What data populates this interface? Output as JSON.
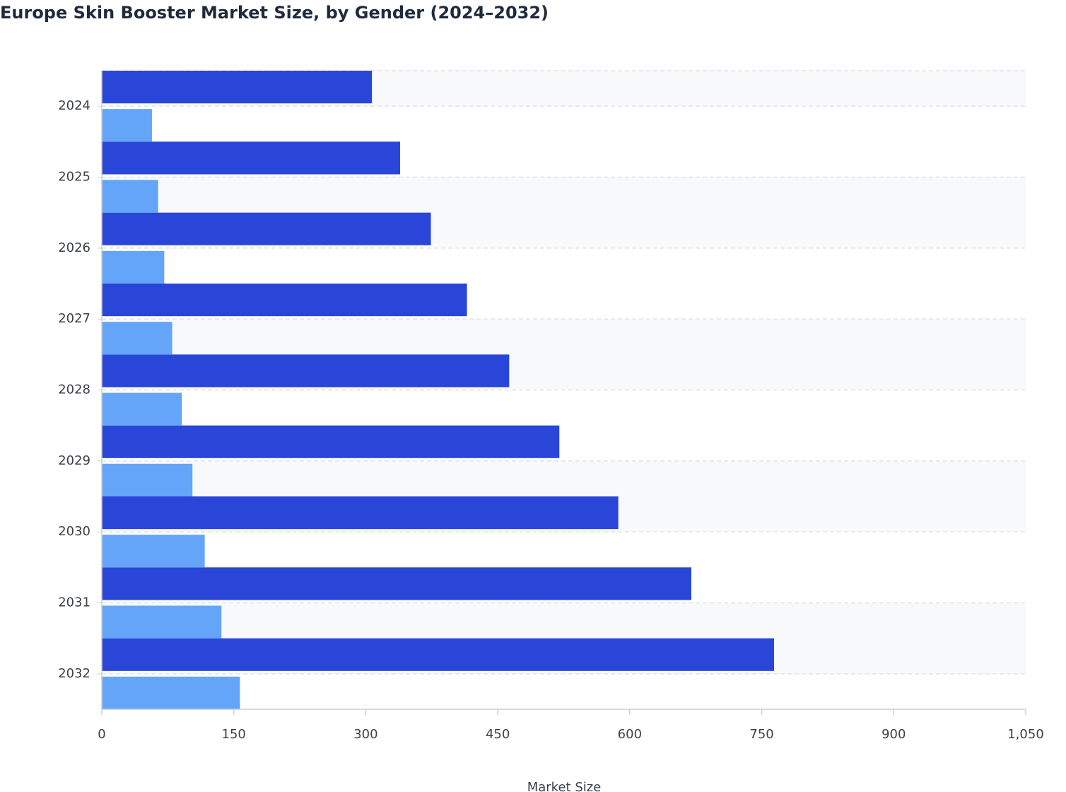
{
  "chart_data": {
    "type": "bar",
    "orientation": "horizontal",
    "title": "Europe Skin Booster Market Size, by Gender (2024–2032)",
    "x_label": "Market Size",
    "categories": [
      "2024",
      "2025",
      "2026",
      "2027",
      "2028",
      "2029",
      "2030",
      "2031",
      "2032"
    ],
    "series": [
      {
        "color": "#2946d9",
        "values": [
          307,
          339,
          374,
          415,
          463,
          520,
          587,
          670,
          764
        ]
      },
      {
        "color": "#64a5f9",
        "values": [
          57,
          64,
          71,
          80,
          91,
          103,
          117,
          136,
          157
        ]
      }
    ],
    "xlim": [
      0,
      1050
    ],
    "xticks": [
      0,
      150,
      300,
      450,
      600,
      750,
      900,
      {
        "value": 1050,
        "label": "1,050"
      }
    ],
    "grid": true
  }
}
